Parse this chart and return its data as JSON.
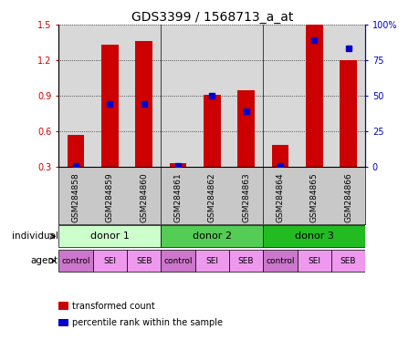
{
  "title": "GDS3399 / 1568713_a_at",
  "samples": [
    "GSM284858",
    "GSM284859",
    "GSM284860",
    "GSM284861",
    "GSM284862",
    "GSM284863",
    "GSM284864",
    "GSM284865",
    "GSM284866"
  ],
  "transformed_count": [
    0.57,
    1.33,
    1.36,
    0.33,
    0.91,
    0.95,
    0.49,
    1.5,
    1.2
  ],
  "percentile_rank_pct": [
    1.0,
    44.0,
    44.0,
    1.0,
    50.0,
    39.0,
    1.0,
    89.0,
    83.0
  ],
  "bar_bottom": 0.3,
  "ylim_left": [
    0.3,
    1.5
  ],
  "ylim_right": [
    0,
    100
  ],
  "yticks_left": [
    0.3,
    0.6,
    0.9,
    1.2,
    1.5
  ],
  "yticks_right": [
    0,
    25,
    50,
    75,
    100
  ],
  "ytick_labels_right": [
    "0",
    "25",
    "50",
    "75",
    "100%"
  ],
  "bar_color": "#cc0000",
  "dot_color": "#0000cc",
  "individuals": [
    {
      "label": "donor 1",
      "span": [
        0,
        3
      ],
      "color": "#ccffcc"
    },
    {
      "label": "donor 2",
      "span": [
        3,
        6
      ],
      "color": "#55cc55"
    },
    {
      "label": "donor 3",
      "span": [
        6,
        9
      ],
      "color": "#22bb22"
    }
  ],
  "agents": [
    {
      "label": "control",
      "color": "#cc77cc"
    },
    {
      "label": "SEI",
      "color": "#ee99ee"
    },
    {
      "label": "SEB",
      "color": "#ee99ee"
    },
    {
      "label": "control",
      "color": "#cc77cc"
    },
    {
      "label": "SEI",
      "color": "#ee99ee"
    },
    {
      "label": "SEB",
      "color": "#ee99ee"
    },
    {
      "label": "control",
      "color": "#cc77cc"
    },
    {
      "label": "SEI",
      "color": "#ee99ee"
    },
    {
      "label": "SEB",
      "color": "#ee99ee"
    }
  ],
  "legend_items": [
    {
      "label": "transformed count",
      "color": "#cc0000"
    },
    {
      "label": "percentile rank within the sample",
      "color": "#0000cc"
    }
  ],
  "individual_label": "individual",
  "agent_label": "agent",
  "title_fontsize": 10,
  "tick_fontsize": 7,
  "sample_fontsize": 6.5,
  "bar_width": 0.5,
  "background_color": "#ffffff",
  "plot_bg_color": "#d8d8d8",
  "sample_bg_color": "#c8c8c8"
}
